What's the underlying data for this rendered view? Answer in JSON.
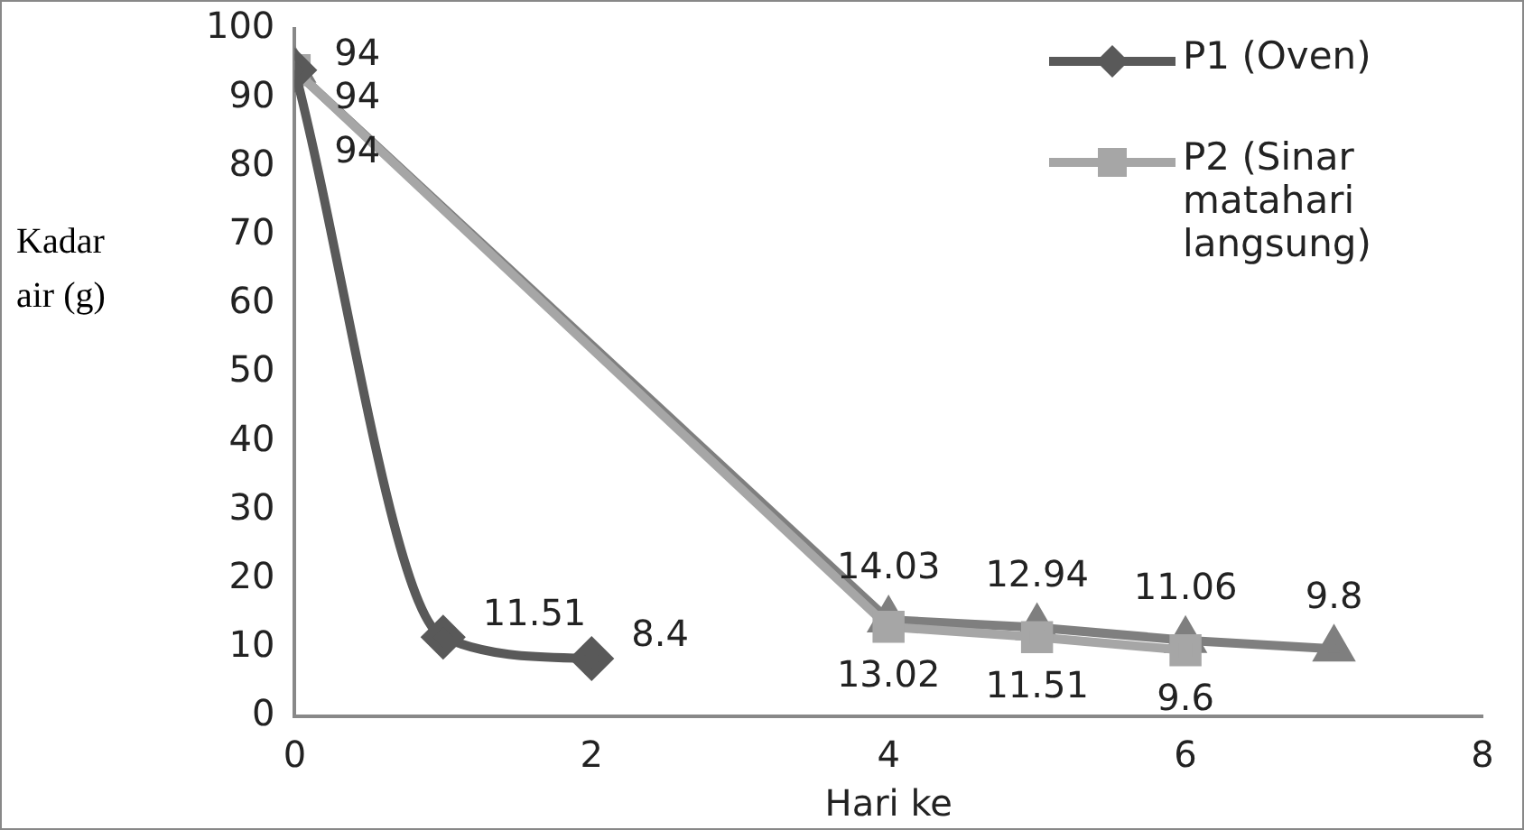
{
  "chart_data": {
    "type": "line",
    "xlabel": "Hari ke",
    "ylabel": "Kadar air (g)",
    "xlim": [
      0,
      8
    ],
    "xticks": [
      0,
      2,
      4,
      6,
      8
    ],
    "ylim": [
      0,
      100
    ],
    "yticks": [
      0,
      10,
      20,
      30,
      40,
      50,
      60,
      70,
      80,
      90,
      100
    ],
    "grid": false,
    "legend": "top right",
    "data_labels": true,
    "series": [
      {
        "name": "P1 (Oven)",
        "color": "#595959",
        "marker": "diamond",
        "x": [
          0,
          1,
          2
        ],
        "values": [
          94,
          11.51,
          8.4
        ]
      },
      {
        "name": "P2 (Sinar matahari langsung)",
        "color": "#a6a6a6",
        "marker": "square",
        "x": [
          0,
          4,
          5,
          6
        ],
        "values": [
          94,
          13.02,
          11.51,
          9.6
        ]
      },
      {
        "color": "#7f7f7f",
        "marker": "triangle",
        "x": [
          0,
          4,
          5,
          6,
          7
        ],
        "values": [
          94,
          14.03,
          12.94,
          11.06,
          9.8
        ]
      }
    ]
  }
}
